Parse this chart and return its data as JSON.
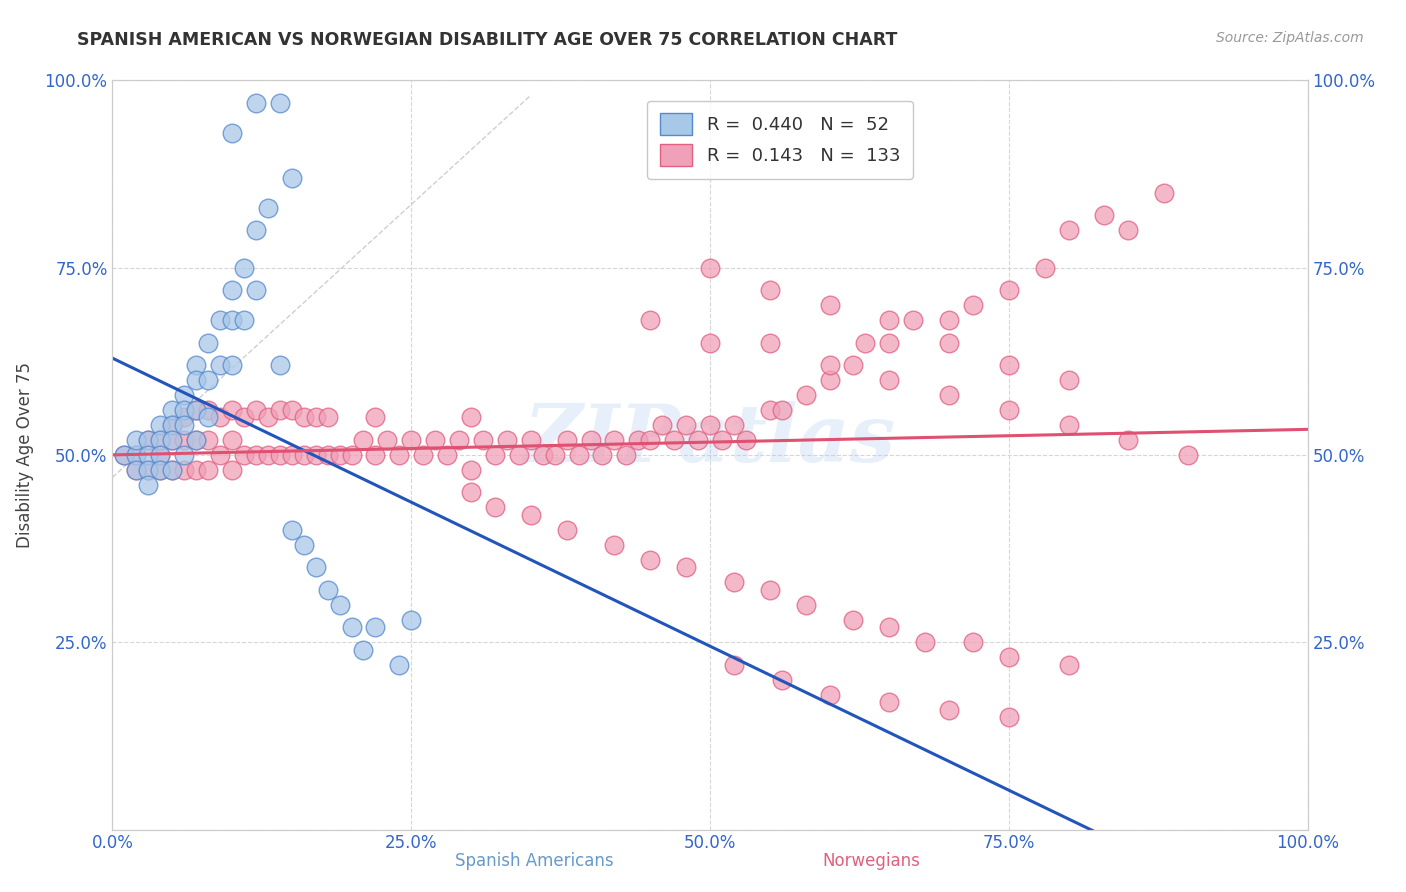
{
  "title": "SPANISH AMERICAN VS NORWEGIAN DISABILITY AGE OVER 75 CORRELATION CHART",
  "source": "Source: ZipAtlas.com",
  "ylabel": "Disability Age Over 75",
  "xlim": [
    0,
    1
  ],
  "ylim": [
    0,
    1
  ],
  "xtick_labels": [
    "0.0%",
    "",
    "25.0%",
    "",
    "50.0%",
    "",
    "75.0%",
    "",
    "100.0%"
  ],
  "xtick_vals": [
    0,
    0.125,
    0.25,
    0.375,
    0.5,
    0.625,
    0.75,
    0.875,
    1.0
  ],
  "ytick_labels": [
    "",
    "25.0%",
    "50.0%",
    "75.0%",
    "100.0%"
  ],
  "ytick_vals": [
    0,
    0.25,
    0.5,
    0.75,
    1.0
  ],
  "blue_R": 0.44,
  "blue_N": 52,
  "pink_R": 0.143,
  "pink_N": 133,
  "blue_color": "#A8C8E8",
  "pink_color": "#F0A0B8",
  "blue_edge_color": "#5588CC",
  "pink_edge_color": "#E06080",
  "blue_line_color": "#2255BB",
  "pink_line_color": "#E05070",
  "watermark": "ZIPatlas",
  "blue_scatter_x": [
    0.01,
    0.02,
    0.02,
    0.02,
    0.03,
    0.03,
    0.03,
    0.03,
    0.04,
    0.04,
    0.04,
    0.04,
    0.05,
    0.05,
    0.05,
    0.05,
    0.06,
    0.06,
    0.06,
    0.06,
    0.07,
    0.07,
    0.07,
    0.07,
    0.08,
    0.08,
    0.08,
    0.09,
    0.09,
    0.1,
    0.1,
    0.1,
    0.11,
    0.11,
    0.12,
    0.12,
    0.13,
    0.14,
    0.15,
    0.15,
    0.16,
    0.17,
    0.18,
    0.19,
    0.2,
    0.21,
    0.22,
    0.24,
    0.25,
    0.1,
    0.12,
    0.14
  ],
  "blue_scatter_y": [
    0.5,
    0.5,
    0.52,
    0.48,
    0.52,
    0.5,
    0.48,
    0.46,
    0.54,
    0.52,
    0.5,
    0.48,
    0.56,
    0.54,
    0.52,
    0.48,
    0.58,
    0.56,
    0.54,
    0.5,
    0.62,
    0.6,
    0.56,
    0.52,
    0.65,
    0.6,
    0.55,
    0.68,
    0.62,
    0.72,
    0.68,
    0.62,
    0.75,
    0.68,
    0.8,
    0.72,
    0.83,
    0.62,
    0.87,
    0.4,
    0.38,
    0.35,
    0.32,
    0.3,
    0.27,
    0.24,
    0.27,
    0.22,
    0.28,
    0.93,
    0.97,
    0.97
  ],
  "pink_scatter_x": [
    0.01,
    0.02,
    0.02,
    0.03,
    0.03,
    0.04,
    0.04,
    0.04,
    0.05,
    0.05,
    0.05,
    0.06,
    0.06,
    0.06,
    0.07,
    0.07,
    0.07,
    0.08,
    0.08,
    0.08,
    0.09,
    0.09,
    0.1,
    0.1,
    0.1,
    0.11,
    0.11,
    0.12,
    0.12,
    0.13,
    0.13,
    0.14,
    0.14,
    0.15,
    0.15,
    0.16,
    0.16,
    0.17,
    0.17,
    0.18,
    0.18,
    0.19,
    0.2,
    0.21,
    0.22,
    0.22,
    0.23,
    0.24,
    0.25,
    0.26,
    0.27,
    0.28,
    0.29,
    0.3,
    0.3,
    0.31,
    0.32,
    0.33,
    0.34,
    0.35,
    0.36,
    0.37,
    0.38,
    0.39,
    0.4,
    0.41,
    0.42,
    0.43,
    0.44,
    0.45,
    0.46,
    0.47,
    0.48,
    0.49,
    0.5,
    0.51,
    0.52,
    0.53,
    0.55,
    0.56,
    0.58,
    0.6,
    0.62,
    0.63,
    0.65,
    0.67,
    0.7,
    0.72,
    0.75,
    0.78,
    0.8,
    0.83,
    0.85,
    0.88,
    0.3,
    0.32,
    0.35,
    0.38,
    0.42,
    0.45,
    0.48,
    0.52,
    0.55,
    0.58,
    0.62,
    0.65,
    0.68,
    0.72,
    0.75,
    0.8,
    0.45,
    0.5,
    0.55,
    0.6,
    0.65,
    0.7,
    0.75,
    0.8,
    0.85,
    0.9,
    0.5,
    0.55,
    0.6,
    0.65,
    0.7,
    0.75,
    0.8,
    0.52,
    0.56,
    0.6,
    0.65,
    0.7,
    0.75
  ],
  "pink_scatter_y": [
    0.5,
    0.5,
    0.48,
    0.52,
    0.48,
    0.52,
    0.5,
    0.48,
    0.54,
    0.52,
    0.48,
    0.55,
    0.52,
    0.48,
    0.56,
    0.52,
    0.48,
    0.56,
    0.52,
    0.48,
    0.55,
    0.5,
    0.56,
    0.52,
    0.48,
    0.55,
    0.5,
    0.56,
    0.5,
    0.55,
    0.5,
    0.56,
    0.5,
    0.56,
    0.5,
    0.55,
    0.5,
    0.55,
    0.5,
    0.55,
    0.5,
    0.5,
    0.5,
    0.52,
    0.55,
    0.5,
    0.52,
    0.5,
    0.52,
    0.5,
    0.52,
    0.5,
    0.52,
    0.55,
    0.48,
    0.52,
    0.5,
    0.52,
    0.5,
    0.52,
    0.5,
    0.5,
    0.52,
    0.5,
    0.52,
    0.5,
    0.52,
    0.5,
    0.52,
    0.52,
    0.54,
    0.52,
    0.54,
    0.52,
    0.54,
    0.52,
    0.54,
    0.52,
    0.56,
    0.56,
    0.58,
    0.6,
    0.62,
    0.65,
    0.65,
    0.68,
    0.68,
    0.7,
    0.72,
    0.75,
    0.8,
    0.82,
    0.8,
    0.85,
    0.45,
    0.43,
    0.42,
    0.4,
    0.38,
    0.36,
    0.35,
    0.33,
    0.32,
    0.3,
    0.28,
    0.27,
    0.25,
    0.25,
    0.23,
    0.22,
    0.68,
    0.65,
    0.65,
    0.62,
    0.6,
    0.58,
    0.56,
    0.54,
    0.52,
    0.5,
    0.75,
    0.72,
    0.7,
    0.68,
    0.65,
    0.62,
    0.6,
    0.22,
    0.2,
    0.18,
    0.17,
    0.16,
    0.15
  ]
}
